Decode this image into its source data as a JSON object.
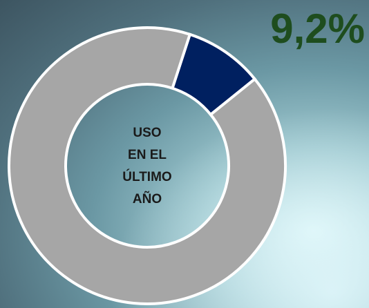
{
  "chart_data": {
    "type": "donut",
    "values": [
      9.2,
      90.8
    ],
    "value_labels": [
      "9,2%",
      null
    ],
    "colors": [
      "#002060",
      "#a6a6a6"
    ],
    "center_label": [
      "USO",
      "EN EL",
      "ÚLTIMO",
      "AÑO"
    ]
  }
}
